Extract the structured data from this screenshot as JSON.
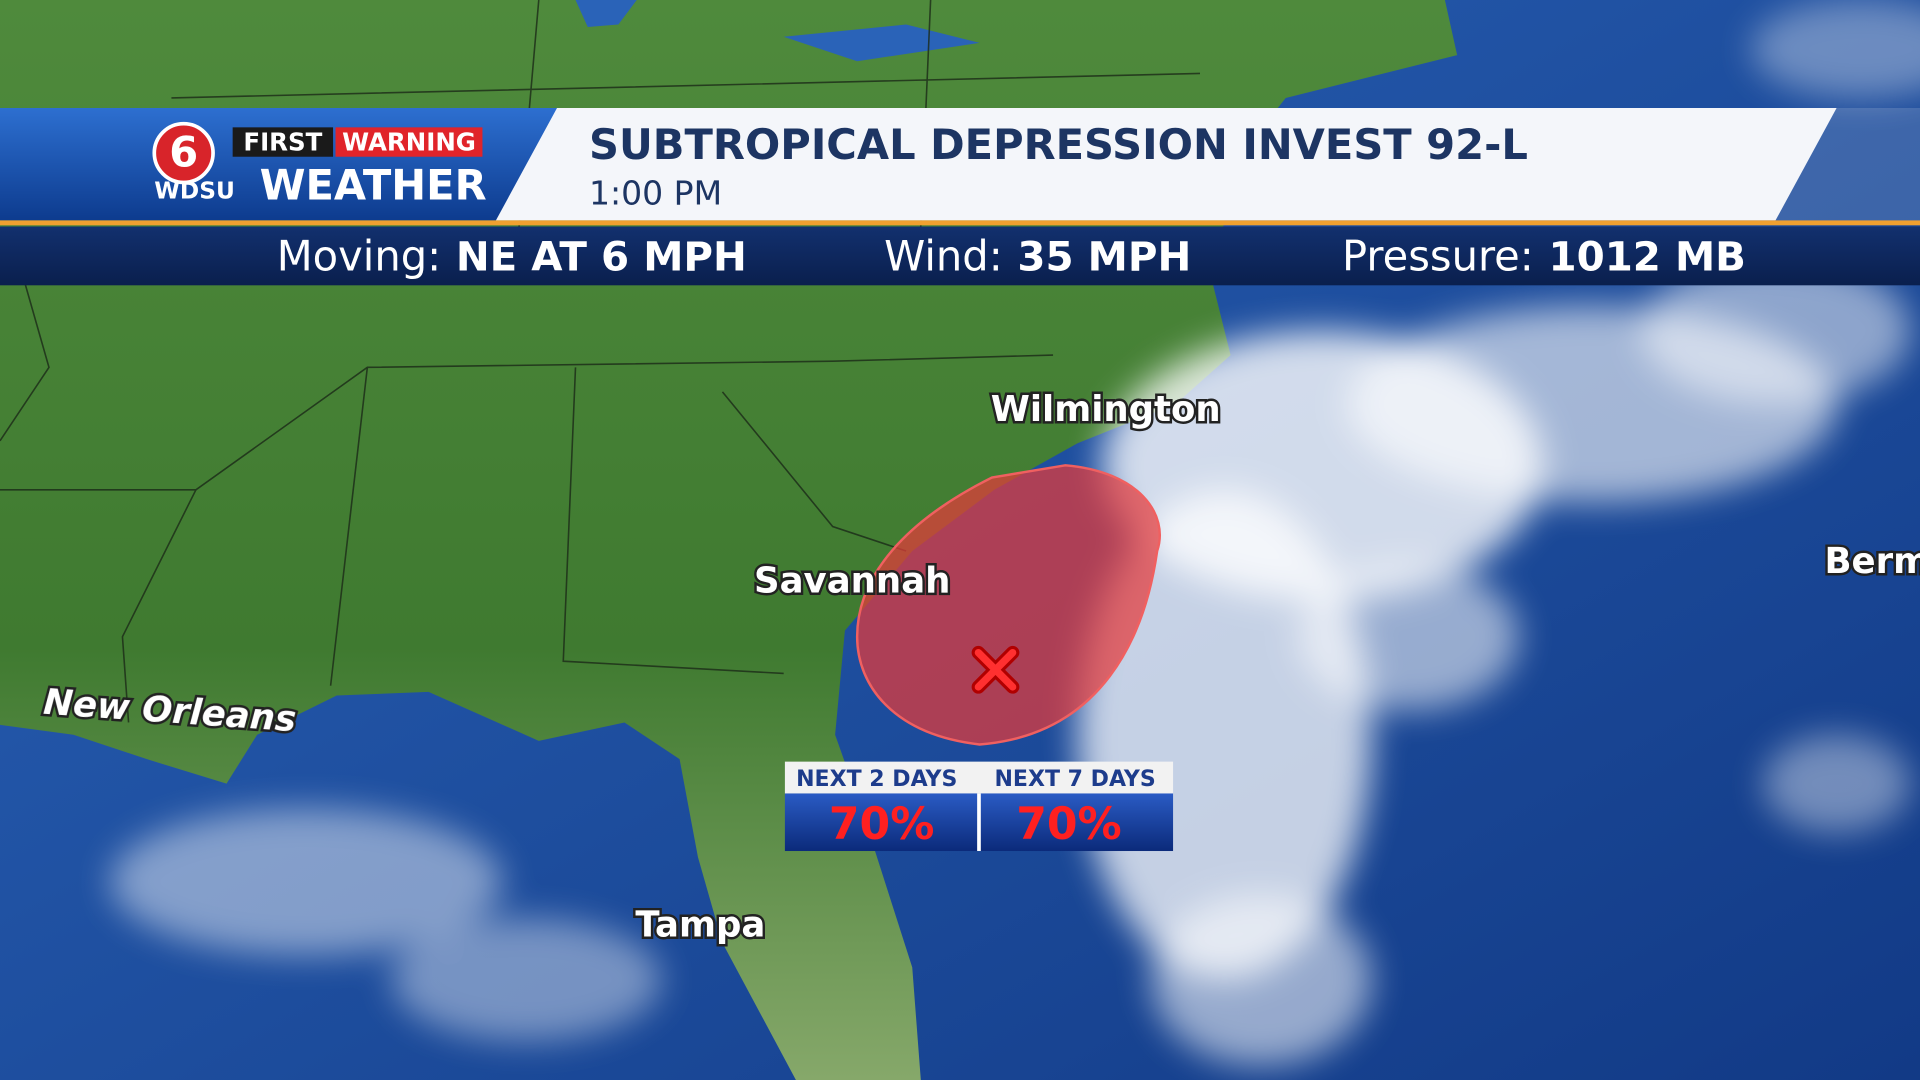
{
  "branding": {
    "channel": "6",
    "first": "FIRST",
    "warning": "WARNING",
    "station": "WDSU",
    "weather": "WEATHER"
  },
  "header": {
    "title": "SUBTROPICAL DEPRESSION INVEST 92-L",
    "time": "1:00 PM"
  },
  "stats": [
    {
      "label": "Moving:",
      "value": "NE AT 6 MPH"
    },
    {
      "label": "Wind:",
      "value": "35 MPH"
    },
    {
      "label": "Pressure:",
      "value": "1012 MB"
    }
  ],
  "cities": [
    {
      "name": "Wilmington"
    },
    {
      "name": "Savannah"
    },
    {
      "name": "New Orleans"
    },
    {
      "name": "Tampa"
    },
    {
      "name": "Berm"
    }
  ],
  "outlook": [
    {
      "label": "NEXT 2 DAYS",
      "value": "70%"
    },
    {
      "label": "NEXT 7 DAYS",
      "value": "70%"
    }
  ]
}
